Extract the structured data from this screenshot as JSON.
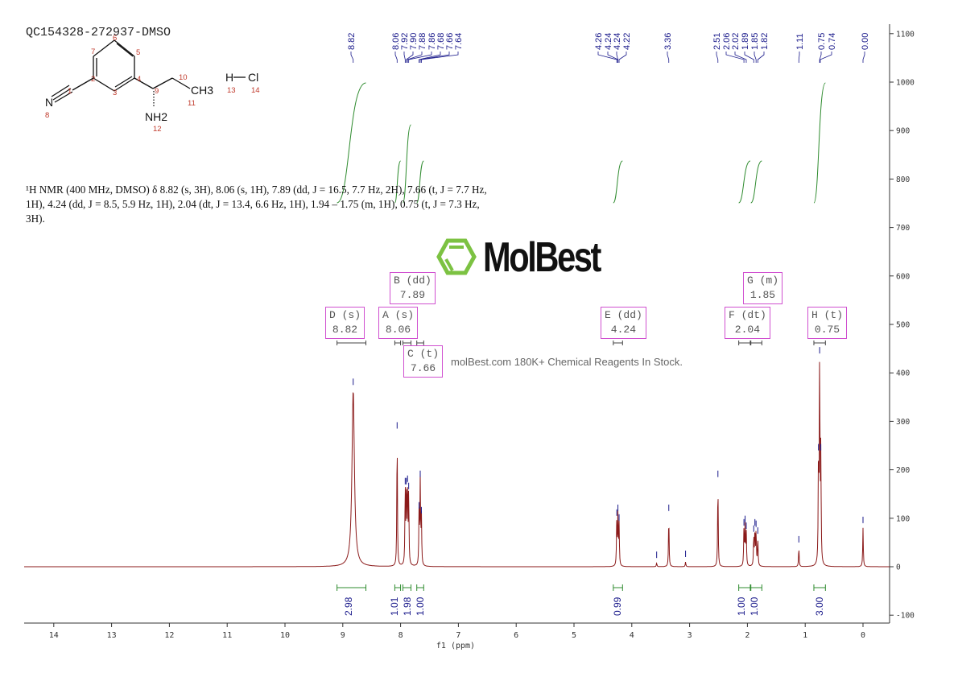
{
  "sample_id": "QC154328-272937-DMSO",
  "description": "¹H NMR (400 MHz, DMSO) δ 8.82 (s, 3H), 8.06 (s, 1H), 7.89 (dd, J = 16.5, 7.7 Hz, 2H), 7.66 (t, J = 7.7 Hz, 1H), 4.24 (dd, J = 8.5, 5.9 Hz, 1H), 2.04 (dt, J = 13.4, 6.6 Hz, 1H), 1.94 – 1.75 (m, 1H), 0.75 (t, J = 7.3 Hz, 3H).",
  "structure": {
    "atoms": [
      "N",
      "CH3",
      "NH2",
      "H",
      "Cl"
    ],
    "atom_numbers": [
      "1",
      "2",
      "3",
      "4",
      "5",
      "6",
      "7",
      "8",
      "9",
      "10",
      "11",
      "12",
      "13",
      "14"
    ]
  },
  "watermark": {
    "logo": "MolBest",
    "text": "molBest.com 180K+ Chemical Reagents In Stock."
  },
  "colors": {
    "spectrum": "#8b1a1a",
    "integral": "#2e8b2e",
    "peak_labels": "#1a1a8b",
    "multiplet_box": "#d050d0"
  },
  "chart_data": {
    "type": "line",
    "xlabel": "f1 (ppm)",
    "ylabel": "",
    "xlim": [
      14.5,
      -0.45
    ],
    "ylim": [
      -120,
      1120
    ],
    "x_ticks": [
      14,
      13,
      12,
      11,
      10,
      9,
      8,
      7,
      6,
      5,
      4,
      3,
      2,
      1,
      0
    ],
    "y_ticks": [
      -100,
      0,
      100,
      200,
      300,
      400,
      500,
      600,
      700,
      800,
      900,
      1000,
      1100
    ],
    "peaks": [
      [
        8.82,
        365
      ],
      [
        8.06,
        275
      ],
      [
        7.92,
        160
      ],
      [
        7.9,
        160
      ],
      [
        7.88,
        165
      ],
      [
        7.86,
        150
      ],
      [
        7.68,
        110
      ],
      [
        7.66,
        175
      ],
      [
        7.64,
        100
      ],
      [
        4.26,
        95
      ],
      [
        4.24,
        105
      ],
      [
        4.22,
        85
      ],
      [
        3.57,
        8
      ],
      [
        3.36,
        105
      ],
      [
        3.07,
        10
      ],
      [
        2.51,
        175
      ],
      [
        2.06,
        75
      ],
      [
        2.04,
        82
      ],
      [
        2.02,
        68
      ],
      [
        1.89,
        62
      ],
      [
        1.87,
        75
      ],
      [
        1.85,
        72
      ],
      [
        1.82,
        58
      ],
      [
        1.11,
        40
      ],
      [
        0.77,
        230
      ],
      [
        0.75,
        430
      ],
      [
        0.73,
        230
      ],
      [
        0.0,
        80
      ]
    ],
    "peak_label_groups": [
      [
        "8.82"
      ],
      [
        "8.06",
        "7.92",
        "7.90",
        "7.88",
        "7.86",
        "7.68",
        "7.66",
        "7.64"
      ],
      [
        "4.26",
        "4.24",
        "4.24",
        "4.22"
      ],
      [
        "3.36"
      ],
      [
        "2.51",
        "2.06",
        "2.02",
        "1.89",
        "1.85",
        "1.82"
      ],
      [
        "1.11"
      ],
      [
        "0.75",
        "0.74"
      ],
      [
        "0.00"
      ]
    ],
    "multiplets": [
      {
        "name": "D (s)",
        "shift": "8.82",
        "range": [
          9.1,
          8.6
        ]
      },
      {
        "name": "A (s)",
        "shift": "8.06",
        "range": [
          8.1,
          8.0
        ]
      },
      {
        "name": "B (dd)",
        "shift": "7.89",
        "range": [
          7.96,
          7.82
        ]
      },
      {
        "name": "C (t)",
        "shift": "7.66",
        "range": [
          7.72,
          7.6
        ]
      },
      {
        "name": "E (dd)",
        "shift": "4.24",
        "range": [
          4.32,
          4.16
        ]
      },
      {
        "name": "F (dt)",
        "shift": "2.04",
        "range": [
          2.15,
          1.95
        ]
      },
      {
        "name": "G (m)",
        "shift": "1.85",
        "range": [
          1.94,
          1.75
        ]
      },
      {
        "name": "H (t)",
        "shift": "0.75",
        "range": [
          0.85,
          0.65
        ]
      }
    ],
    "integrals": [
      {
        "value": "2.98",
        "range": [
          9.1,
          8.6
        ]
      },
      {
        "value": "1.01",
        "range": [
          8.1,
          8.0
        ]
      },
      {
        "value": "1.98",
        "range": [
          7.96,
          7.82
        ]
      },
      {
        "value": "1.00",
        "range": [
          7.72,
          7.6
        ]
      },
      {
        "value": "0.99",
        "range": [
          4.32,
          4.16
        ]
      },
      {
        "value": "1.00",
        "range": [
          2.15,
          1.95
        ]
      },
      {
        "value": "1.00",
        "range": [
          1.94,
          1.75
        ]
      },
      {
        "value": "3.00",
        "range": [
          0.85,
          0.65
        ]
      }
    ]
  }
}
